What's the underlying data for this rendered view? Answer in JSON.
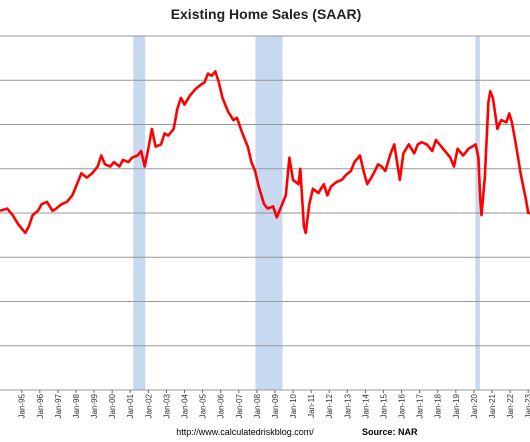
{
  "chart_data": {
    "type": "line",
    "title": "Existing Home Sales (SAAR)",
    "url": "http://www.calculatedriskblog.com/",
    "source": "Source: NAR",
    "x_tick_labels": [
      "Jan-95",
      "Jan-96",
      "Jan-97",
      "Jan-98",
      "Jan-99",
      "Jan-00",
      "Jan-01",
      "Jan-02",
      "Jan-03",
      "Jan-04",
      "Jan-05",
      "Jan-06",
      "Jan-07",
      "Jan-08",
      "Jan-09",
      "Jan-10",
      "Jan-11",
      "Jan-12",
      "Jan-13",
      "Jan-14",
      "Jan-15",
      "Jan-16",
      "Jan-17",
      "Jan-18",
      "Jan-19",
      "Jan-20",
      "Jan-21",
      "Jan-22",
      "Jan-23"
    ],
    "xlim": [
      1993.8,
      2023.1
    ],
    "ylim": [
      0,
      8000000
    ],
    "ytick_step": 1000000,
    "grid": true,
    "recessions": [
      [
        2001.17,
        2001.83
      ],
      [
        2007.92,
        2009.42
      ],
      [
        2020.08,
        2020.33
      ]
    ],
    "reference_line": {
      "value": 4000000,
      "start": 2008.2,
      "style": "dashed"
    },
    "series": [
      {
        "color": "#ff0000",
        "points": [
          [
            1993.8,
            4.05
          ],
          [
            1994.2,
            4.1
          ],
          [
            1994.5,
            3.95
          ],
          [
            1994.8,
            3.75
          ],
          [
            1995.0,
            3.65
          ],
          [
            1995.2,
            3.55
          ],
          [
            1995.4,
            3.7
          ],
          [
            1995.6,
            3.95
          ],
          [
            1995.9,
            4.05
          ],
          [
            1996.1,
            4.2
          ],
          [
            1996.4,
            4.25
          ],
          [
            1996.7,
            4.05
          ],
          [
            1996.9,
            4.1
          ],
          [
            1997.2,
            4.2
          ],
          [
            1997.5,
            4.25
          ],
          [
            1997.8,
            4.4
          ],
          [
            1998.0,
            4.6
          ],
          [
            1998.3,
            4.9
          ],
          [
            1998.6,
            4.8
          ],
          [
            1998.9,
            4.9
          ],
          [
            1999.2,
            5.05
          ],
          [
            1999.4,
            5.3
          ],
          [
            1999.6,
            5.1
          ],
          [
            1999.9,
            5.05
          ],
          [
            2000.1,
            5.15
          ],
          [
            2000.4,
            5.05
          ],
          [
            2000.6,
            5.2
          ],
          [
            2000.9,
            5.15
          ],
          [
            2001.1,
            5.25
          ],
          [
            2001.4,
            5.3
          ],
          [
            2001.6,
            5.4
          ],
          [
            2001.8,
            5.05
          ],
          [
            2002.0,
            5.45
          ],
          [
            2002.2,
            5.9
          ],
          [
            2002.4,
            5.5
          ],
          [
            2002.7,
            5.55
          ],
          [
            2002.9,
            5.8
          ],
          [
            2003.1,
            5.75
          ],
          [
            2003.4,
            5.9
          ],
          [
            2003.6,
            6.35
          ],
          [
            2003.8,
            6.6
          ],
          [
            2004.0,
            6.45
          ],
          [
            2004.3,
            6.65
          ],
          [
            2004.6,
            6.8
          ],
          [
            2004.9,
            6.9
          ],
          [
            2005.1,
            6.95
          ],
          [
            2005.3,
            7.15
          ],
          [
            2005.5,
            7.1
          ],
          [
            2005.7,
            7.2
          ],
          [
            2005.9,
            6.95
          ],
          [
            2006.1,
            6.6
          ],
          [
            2006.4,
            6.3
          ],
          [
            2006.7,
            6.1
          ],
          [
            2006.9,
            6.15
          ],
          [
            2007.2,
            5.8
          ],
          [
            2007.5,
            5.5
          ],
          [
            2007.7,
            5.15
          ],
          [
            2007.9,
            4.95
          ],
          [
            2008.1,
            4.6
          ],
          [
            2008.4,
            4.2
          ],
          [
            2008.6,
            4.1
          ],
          [
            2008.9,
            4.15
          ],
          [
            2009.1,
            3.9
          ],
          [
            2009.3,
            4.1
          ],
          [
            2009.6,
            4.4
          ],
          [
            2009.8,
            5.25
          ],
          [
            2010.0,
            4.75
          ],
          [
            2010.3,
            4.65
          ],
          [
            2010.4,
            5.0
          ],
          [
            2010.6,
            3.7
          ],
          [
            2010.7,
            3.55
          ],
          [
            2010.9,
            4.2
          ],
          [
            2011.1,
            4.55
          ],
          [
            2011.4,
            4.45
          ],
          [
            2011.7,
            4.65
          ],
          [
            2011.9,
            4.4
          ],
          [
            2012.1,
            4.6
          ],
          [
            2012.4,
            4.7
          ],
          [
            2012.7,
            4.75
          ],
          [
            2012.9,
            4.85
          ],
          [
            2013.2,
            4.95
          ],
          [
            2013.4,
            5.15
          ],
          [
            2013.7,
            5.3
          ],
          [
            2013.9,
            4.95
          ],
          [
            2014.1,
            4.65
          ],
          [
            2014.4,
            4.85
          ],
          [
            2014.7,
            5.1
          ],
          [
            2014.9,
            5.05
          ],
          [
            2015.1,
            4.95
          ],
          [
            2015.4,
            5.35
          ],
          [
            2015.6,
            5.55
          ],
          [
            2015.9,
            4.75
          ],
          [
            2016.1,
            5.35
          ],
          [
            2016.4,
            5.55
          ],
          [
            2016.7,
            5.35
          ],
          [
            2016.9,
            5.55
          ],
          [
            2017.1,
            5.6
          ],
          [
            2017.4,
            5.55
          ],
          [
            2017.7,
            5.4
          ],
          [
            2017.9,
            5.65
          ],
          [
            2018.1,
            5.55
          ],
          [
            2018.4,
            5.4
          ],
          [
            2018.7,
            5.25
          ],
          [
            2018.9,
            5.05
          ],
          [
            2019.1,
            5.45
          ],
          [
            2019.4,
            5.3
          ],
          [
            2019.7,
            5.45
          ],
          [
            2019.9,
            5.5
          ],
          [
            2020.1,
            5.55
          ],
          [
            2020.25,
            5.25
          ],
          [
            2020.35,
            4.3
          ],
          [
            2020.42,
            3.95
          ],
          [
            2020.6,
            4.8
          ],
          [
            2020.8,
            6.5
          ],
          [
            2020.9,
            6.75
          ],
          [
            2021.05,
            6.6
          ],
          [
            2021.3,
            5.9
          ],
          [
            2021.5,
            6.1
          ],
          [
            2021.8,
            6.05
          ],
          [
            2021.95,
            6.25
          ],
          [
            2022.1,
            6.05
          ],
          [
            2022.3,
            5.6
          ],
          [
            2022.6,
            4.85
          ],
          [
            2022.9,
            4.25
          ],
          [
            2023.0,
            4.0
          ],
          [
            2023.1,
            4.0
          ]
        ]
      }
    ]
  }
}
